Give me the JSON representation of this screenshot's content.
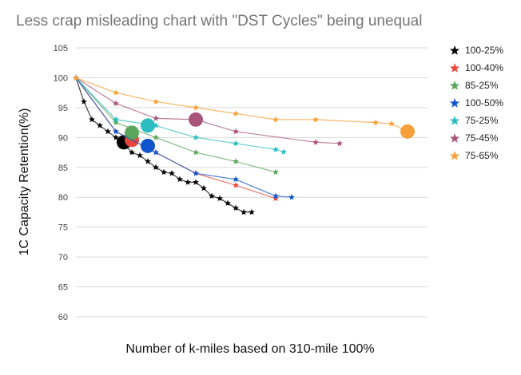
{
  "chart_data": {
    "type": "scatter",
    "title": "Less crap misleading chart with \"DST Cycles\" being unequal",
    "xlabel": "Number of k-miles based on 310-mile 100%",
    "ylabel": "1C Capacity Retention(%)",
    "ylim": [
      60,
      105
    ],
    "yticks": [
      60,
      65,
      70,
      75,
      80,
      85,
      90,
      95,
      100,
      105
    ],
    "grid": true,
    "legend_position": "right",
    "series": [
      {
        "name": "100-25%",
        "color": "#000000",
        "x": [
          0,
          2,
          4,
          6,
          8,
          10,
          12,
          14,
          16,
          18,
          20,
          22,
          24,
          26,
          28,
          30,
          32,
          34,
          36,
          38,
          40,
          42,
          44
        ],
        "y": [
          100,
          96,
          93,
          92,
          91,
          90,
          89,
          87.5,
          87,
          86,
          85,
          84.2,
          84,
          83,
          82.5,
          82.5,
          81.5,
          80.2,
          79.8,
          79,
          78.2,
          77.5,
          77.5
        ],
        "marker_x": 12,
        "marker_y": 89.2
      },
      {
        "name": "100-40%",
        "color": "#e8453c",
        "x": [
          0,
          10,
          20,
          30,
          40,
          50
        ],
        "y": [
          100,
          91,
          87.5,
          84,
          82,
          79.8
        ],
        "marker_x": 14,
        "marker_y": 89.6
      },
      {
        "name": "85-25%",
        "color": "#5aa65a",
        "x": [
          0,
          10,
          20,
          30,
          40,
          50
        ],
        "y": [
          100,
          92.5,
          90,
          87.5,
          86,
          84.2
        ],
        "marker_x": 14,
        "marker_y": 90.8
      },
      {
        "name": "100-50%",
        "color": "#1155cc",
        "x": [
          0,
          10,
          20,
          30,
          40,
          50,
          54
        ],
        "y": [
          100,
          91,
          87.5,
          84,
          83,
          80.2,
          80
        ],
        "marker_x": 18,
        "marker_y": 88.6
      },
      {
        "name": "75-25%",
        "color": "#2bbcc0",
        "x": [
          0,
          10,
          20,
          30,
          40,
          50,
          52
        ],
        "y": [
          100,
          93,
          92,
          90,
          89,
          88,
          87.6
        ],
        "marker_x": 18,
        "marker_y": 92
      },
      {
        "name": "75-45%",
        "color": "#a8557a",
        "x": [
          0,
          10,
          20,
          30,
          40,
          60,
          66
        ],
        "y": [
          100,
          95.7,
          93.2,
          93,
          91,
          89.2,
          89
        ],
        "marker_x": 30,
        "marker_y": 93
      },
      {
        "name": "75-65%",
        "color": "#f5a03a",
        "x": [
          0,
          10,
          20,
          30,
          40,
          50,
          60,
          75,
          79,
          83
        ],
        "y": [
          100,
          97.5,
          96,
          95,
          94,
          93,
          93,
          92.5,
          92.3,
          91
        ],
        "marker_x": 83,
        "marker_y": 91
      }
    ]
  }
}
